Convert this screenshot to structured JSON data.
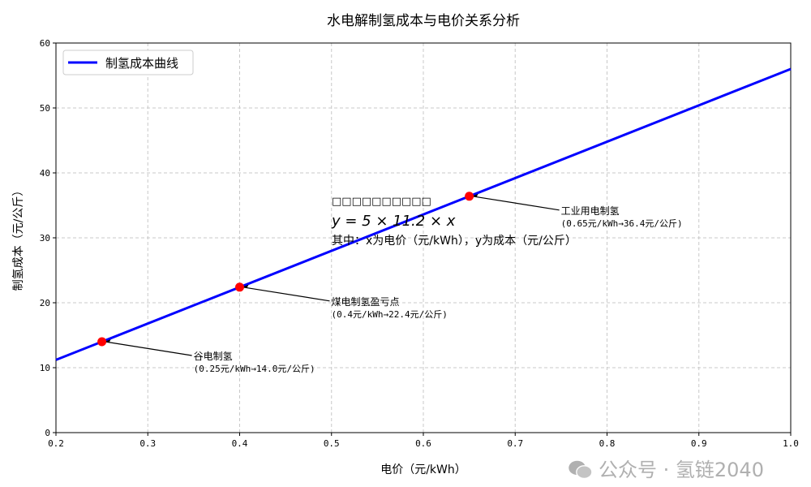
{
  "chart_data": {
    "type": "line",
    "title": "水电解制氢成本与电价关系分析",
    "xlabel": "电价（元/kWh）",
    "ylabel": "制氢成本（元/公斤）",
    "xlim": [
      0.2,
      1.0
    ],
    "ylim": [
      0,
      60
    ],
    "xticks": [
      "0.2",
      "0.3",
      "0.4",
      "0.5",
      "0.6",
      "0.7",
      "0.8",
      "0.9",
      "1.0"
    ],
    "yticks": [
      "0",
      "10",
      "20",
      "30",
      "40",
      "50",
      "60"
    ],
    "grid": true,
    "legend_position": "top-left",
    "series": [
      {
        "name": "制氢成本曲线",
        "color": "#0000ff",
        "x": [
          0.2,
          1.0
        ],
        "y": [
          11.2,
          56.0
        ]
      }
    ],
    "points": [
      {
        "x": 0.25,
        "y": 14.0,
        "label": "谷电制氢",
        "detail": "(0.25元/kWh→14.0元/公斤)"
      },
      {
        "x": 0.4,
        "y": 22.4,
        "label": "煤电制氢盈亏点",
        "detail": "(0.4元/kWh→22.4元/公斤)"
      },
      {
        "x": 0.65,
        "y": 36.4,
        "label": "工业用电制氢",
        "detail": "(0.65元/kWh→36.4元/公斤)"
      }
    ],
    "point_color": "#ff0000",
    "formula": {
      "line1": "□□□□□□□□□□",
      "line2": "y = 5 × 11.2 × x",
      "line3": "其中：x为电价（元/kWh），y为成本（元/公斤）"
    }
  },
  "watermark": {
    "text": "公众号 · 氢链2040",
    "icon": "wechat-icon"
  }
}
